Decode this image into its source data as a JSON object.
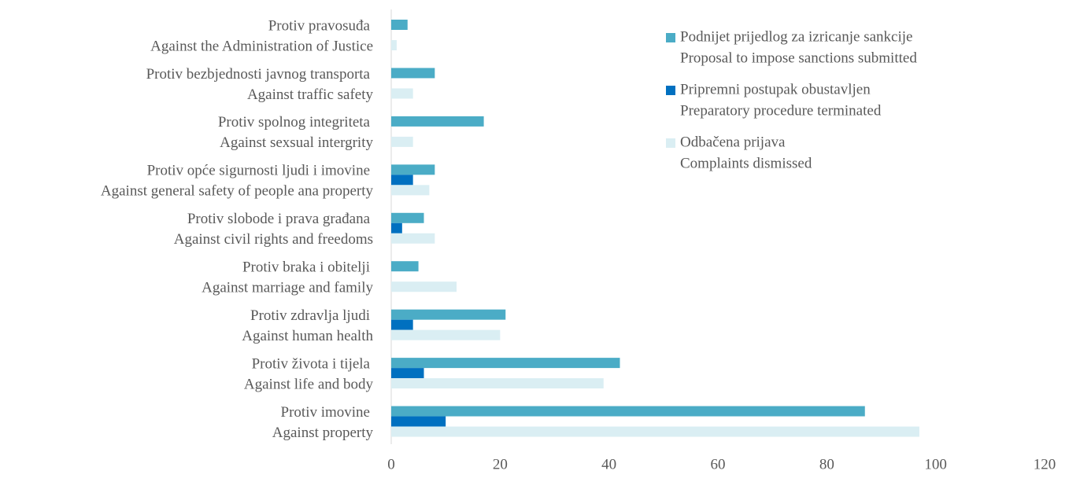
{
  "chart_data": {
    "type": "bar",
    "orientation": "horizontal",
    "categories": [
      [
        "Protiv pravosuđa",
        "Against the Administration of Justice"
      ],
      [
        "Protiv bezbjednosti javnog transporta",
        "Against traffic safety"
      ],
      [
        "Protiv spolnog integriteta",
        "Against sexsual intergrity"
      ],
      [
        "Protiv opće sigurnosti ljudi i imovine",
        "Against general safety of people ana property"
      ],
      [
        "Protiv slobode i prava građana",
        "Against civil rights and freedoms"
      ],
      [
        "Protiv braka i obitelji",
        "Against marriage and family"
      ],
      [
        "Protiv zdravlja ljudi",
        "Against human health"
      ],
      [
        "Protiv života i tijela",
        "Against life and body"
      ],
      [
        "Protiv imovine",
        "Against property"
      ]
    ],
    "series": [
      {
        "name": [
          "Podnijet prijedlog za izricanje sankcije",
          "Proposal to impose sanctions submitted"
        ],
        "color": "#4bacc6",
        "values": [
          3,
          8,
          17,
          8,
          6,
          5,
          21,
          42,
          87
        ]
      },
      {
        "name": [
          "Pripremni postupak obustavljen",
          "Preparatory procedure terminated"
        ],
        "color": "#0070c0",
        "values": [
          0,
          0,
          0,
          4,
          2,
          0,
          4,
          6,
          10
        ]
      },
      {
        "name": [
          "Odbačena prijava",
          "Complaints dismissed"
        ],
        "color": "#daeef3",
        "values": [
          1,
          4,
          4,
          7,
          8,
          12,
          20,
          39,
          97
        ]
      }
    ],
    "xlim": [
      0,
      120
    ],
    "xticks": [
      0,
      20,
      40,
      60,
      80,
      100,
      120
    ],
    "legend": "upper right"
  }
}
